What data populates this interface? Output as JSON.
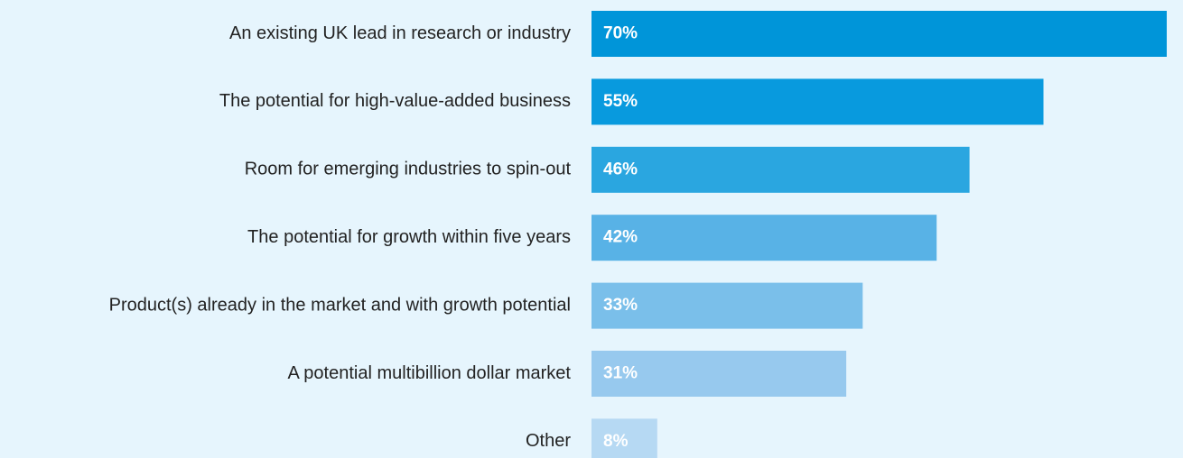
{
  "chart_data": {
    "type": "bar",
    "orientation": "horizontal",
    "categories": [
      "An existing UK lead in research or industry",
      "The potential for high-value-added business",
      "Room for emerging industries to spin-out",
      "The potential for growth within five years",
      "Product(s) already in the market and with growth potential",
      "A potential multibillion dollar market",
      "Other"
    ],
    "values": [
      70,
      55,
      46,
      42,
      33,
      31,
      8
    ],
    "value_labels": [
      "70%",
      "55%",
      "46%",
      "42%",
      "33%",
      "31%",
      "8%"
    ],
    "colors": [
      "#0095d9",
      "#089ade",
      "#2aa6e0",
      "#58b2e6",
      "#7abfea",
      "#97c9ee",
      "#b6d9f3"
    ],
    "xlim": [
      0,
      70
    ]
  }
}
